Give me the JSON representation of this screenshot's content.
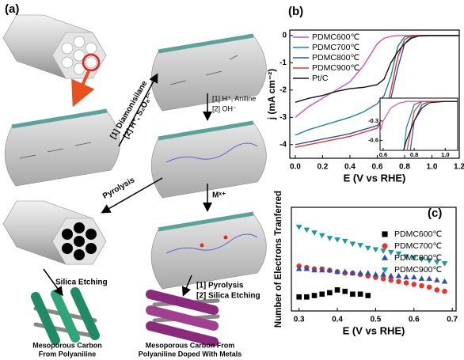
{
  "diagram": {
    "panel_label": "(a)",
    "step1": [
      "[1] Diamonisilane",
      "[2] H⁺, S₂O₈²⁻"
    ],
    "step2": [
      "[1] H⁺, Aniline",
      "[2] OH⁻"
    ],
    "pyrolysis": "Pyrolysis",
    "metal": "Mˣ⁺",
    "etching": "Silica Etching",
    "step3": [
      "[1] Pyrolysis",
      "[2] Silica Etching"
    ],
    "product1": [
      "Mesoporous Carbon",
      "From Polyaniline"
    ],
    "product2": [
      "Mesoporous Carbon From",
      "Polyaniline Doped With Metals"
    ]
  },
  "chart_data": [
    {
      "type": "line",
      "panel_label": "(b)",
      "xlabel": "E (V vs RHE)",
      "ylabel": "j (mA cm⁻²)",
      "x": [
        0,
        0.1,
        0.2,
        0.3,
        0.4,
        0.5,
        0.6,
        0.65,
        0.7,
        0.75,
        0.8,
        0.85,
        0.9,
        1.0,
        1.1,
        1.2
      ],
      "series": [
        {
          "name": "PDMC600℃",
          "color": "#d84fa8",
          "values": [
            -3.0,
            -2.6,
            -2.3,
            -2.0,
            -1.7,
            -1.1,
            -0.3,
            -0.1,
            -0.03,
            0,
            0,
            0,
            0,
            0,
            0,
            0
          ]
        },
        {
          "name": "PDMC700℃",
          "color": "#128a8a",
          "values": [
            -3.65,
            -3.45,
            -3.3,
            -3.15,
            -3.0,
            -2.8,
            -2.5,
            -2.2,
            -1.5,
            -0.4,
            -0.05,
            0,
            0,
            0,
            0,
            0
          ]
        },
        {
          "name": "PDMC800℃",
          "color": "#2c52a8",
          "values": [
            -4.0,
            -3.9,
            -3.8,
            -3.7,
            -3.6,
            -3.45,
            -3.3,
            -3.0,
            -2.3,
            -1.2,
            -0.3,
            -0.05,
            0,
            0,
            0,
            0
          ]
        },
        {
          "name": "PDMC900℃",
          "color": "#e8342c",
          "values": [
            -4.1,
            -4.0,
            -3.9,
            -3.8,
            -3.7,
            -3.55,
            -3.4,
            -3.0,
            -2.0,
            -0.8,
            -0.15,
            0,
            0,
            0,
            0,
            0
          ]
        },
        {
          "name": "Pt/C",
          "color": "#111111",
          "values": [
            -2.45,
            -2.3,
            -2.2,
            -2.05,
            -1.95,
            -1.9,
            -1.8,
            -1.6,
            -1.0,
            -0.6,
            -0.3,
            -0.1,
            -0.02,
            0,
            0,
            0
          ]
        }
      ],
      "xlim": [
        -0.04,
        1.2
      ],
      "ylim": [
        -4.5,
        0.2
      ],
      "xticks": [
        {
          "value": 0,
          "label": "0.0"
        },
        0.2,
        0.4,
        0.6,
        0.8,
        {
          "value": 1,
          "label": "1.0"
        },
        1.2
      ],
      "yticks": [
        0,
        -1,
        -2,
        -3,
        -4
      ],
      "legend": "upper left",
      "inset": {
        "xlim": [
          0.58,
          1.08
        ],
        "ylim": [
          -0.75,
          0.05
        ],
        "xticks": [
          0.6,
          0.8,
          {
            "value": 1,
            "label": "1.0"
          }
        ],
        "yticks": [
          -0.3,
          -0.6
        ]
      }
    },
    {
      "type": "scatter",
      "panel_label": "(c)",
      "xlabel": "E (V vs RHE)",
      "ylabel": "Number of Electrons Tranferred",
      "series": [
        {
          "name": "PDMC600℃",
          "color": "#000000",
          "marker": "square",
          "x": [
            0.3,
            0.32,
            0.34,
            0.36,
            0.38,
            0.4,
            0.42,
            0.44,
            0.46,
            0.48
          ],
          "values": [
            1.85,
            1.85,
            1.9,
            1.95,
            2.0,
            2.1,
            2.05,
            1.95,
            1.95,
            1.9
          ]
        },
        {
          "name": "PDMC700℃",
          "color": "#e8342c",
          "marker": "circle",
          "x": [
            0.3,
            0.32,
            0.34,
            0.36,
            0.38,
            0.4,
            0.42,
            0.44,
            0.46,
            0.48,
            0.5,
            0.52,
            0.54,
            0.56,
            0.58,
            0.6,
            0.62,
            0.64,
            0.66,
            0.68
          ],
          "values": [
            2.95,
            2.9,
            2.85,
            2.85,
            2.8,
            2.75,
            2.7,
            2.7,
            2.65,
            2.6,
            2.55,
            2.5,
            2.45,
            2.4,
            2.35,
            2.3,
            2.25,
            2.2,
            2.1,
            2.05
          ]
        },
        {
          "name": "PDMC800℃",
          "color": "#2c52a8",
          "marker": "triangle",
          "x": [
            0.3,
            0.32,
            0.34,
            0.36,
            0.38,
            0.4,
            0.42,
            0.44,
            0.46,
            0.48,
            0.5,
            0.52,
            0.54,
            0.56,
            0.58,
            0.6,
            0.62,
            0.64,
            0.66,
            0.68
          ],
          "values": [
            2.85,
            2.85,
            2.8,
            2.8,
            2.8,
            2.75,
            2.75,
            2.7,
            2.7,
            2.7,
            2.65,
            2.65,
            2.6,
            2.6,
            2.55,
            2.55,
            2.5,
            2.5,
            2.45,
            2.4
          ]
        },
        {
          "name": "PDMC900℃",
          "color": "#1a9a9a",
          "marker": "triangle-down",
          "x": [
            0.3,
            0.32,
            0.34,
            0.36,
            0.38,
            0.4,
            0.42,
            0.44,
            0.46,
            0.48,
            0.5,
            0.52,
            0.54,
            0.56,
            0.58,
            0.6,
            0.62,
            0.64,
            0.66,
            0.68
          ],
          "values": [
            4.35,
            4.25,
            4.15,
            4.05,
            3.95,
            3.9,
            3.85,
            3.75,
            3.7,
            3.6,
            3.55,
            3.5,
            3.45,
            3.4,
            3.3,
            3.25,
            3.2,
            3.15,
            3.1,
            3.05
          ]
        }
      ],
      "xlim": [
        0.28,
        0.71
      ],
      "ylim": [
        1.35,
        5.05
      ],
      "xticks": [
        0.3,
        0.4,
        0.5,
        0.6,
        0.7
      ],
      "legend": "upper right"
    }
  ]
}
